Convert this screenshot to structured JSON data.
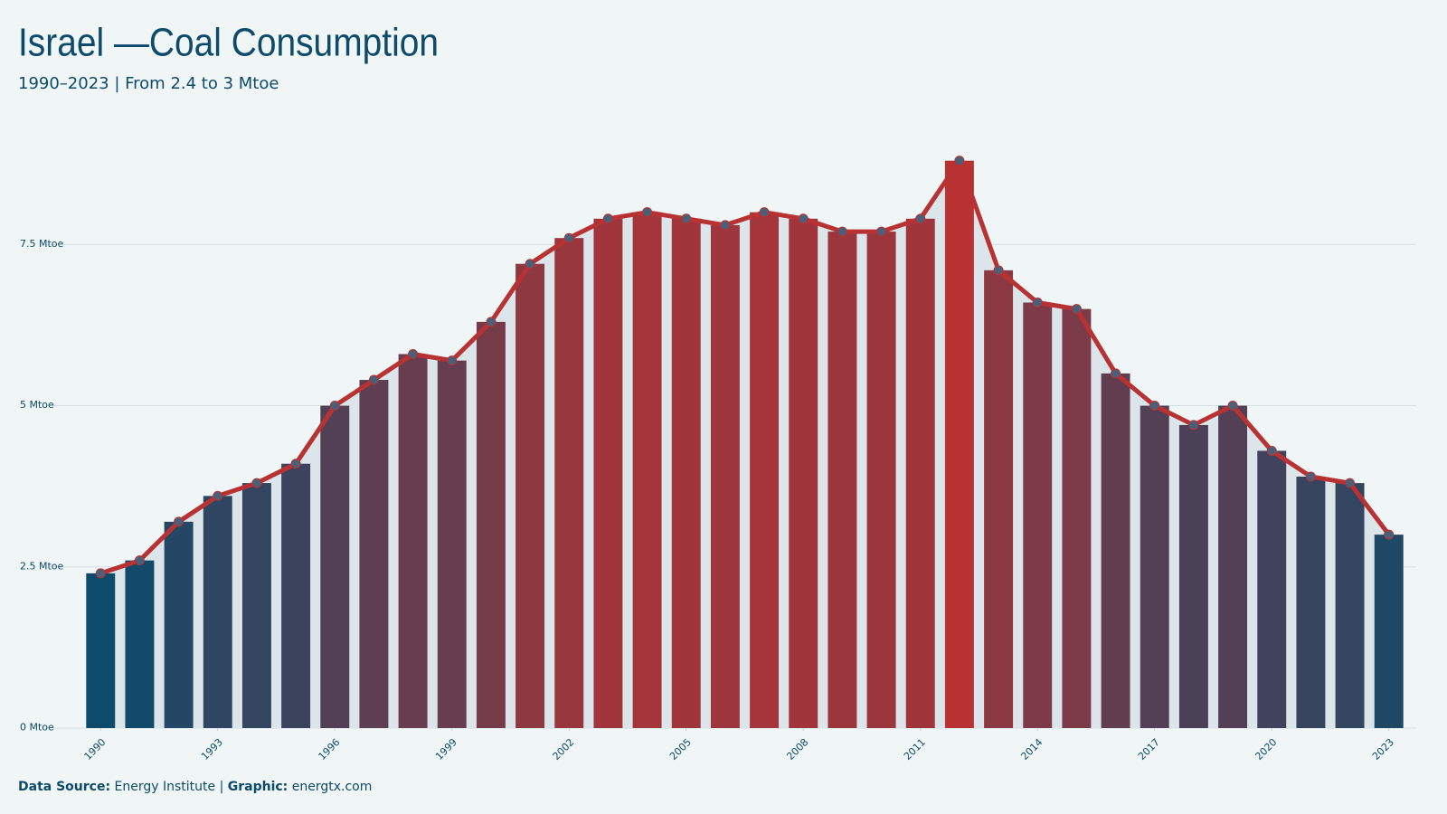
{
  "chart_data": {
    "type": "bar",
    "title": "Israel —Coal Consumption",
    "subtitle": "1990–2023 | From 2.4 to 3 Mtoe",
    "x": [
      1990,
      1991,
      1992,
      1993,
      1994,
      1995,
      1996,
      1997,
      1998,
      1999,
      2000,
      2001,
      2002,
      2003,
      2004,
      2005,
      2006,
      2007,
      2008,
      2009,
      2010,
      2011,
      2012,
      2013,
      2014,
      2015,
      2016,
      2017,
      2018,
      2019,
      2020,
      2021,
      2022,
      2023
    ],
    "values": [
      2.4,
      2.6,
      3.2,
      3.6,
      3.8,
      4.1,
      5.0,
      5.4,
      5.8,
      5.7,
      6.3,
      7.2,
      7.6,
      7.9,
      8.0,
      7.9,
      7.8,
      8.0,
      7.9,
      7.7,
      7.7,
      7.9,
      8.8,
      7.1,
      6.6,
      6.5,
      5.5,
      5.0,
      4.7,
      5.0,
      4.3,
      3.9,
      3.8,
      3.0
    ],
    "xlim": [
      1989.6,
      2023.4
    ],
    "xticks": [
      1990,
      1993,
      1996,
      1999,
      2002,
      2005,
      2008,
      2011,
      2014,
      2017,
      2020,
      2023
    ],
    "ylim": [
      0,
      9.3
    ],
    "yticks": [
      {
        "value": 0,
        "label": "0 Mtoe"
      },
      {
        "value": 2.5,
        "label": "2.5 Mtoe"
      },
      {
        "value": 5,
        "label": "5 Mtoe"
      },
      {
        "value": 7.5,
        "label": "7.5 Mtoe"
      }
    ],
    "grid": true,
    "color_low": "#0e4a6b",
    "color_high": "#b83234",
    "line_color": "#b83234",
    "area_color": "#dce5e9",
    "marker_color": "#4a5f78",
    "source_label": "Data Source:",
    "source": "Energy Institute",
    "separator": "|",
    "credit_label": "Graphic:",
    "credit": "energtx.com"
  }
}
